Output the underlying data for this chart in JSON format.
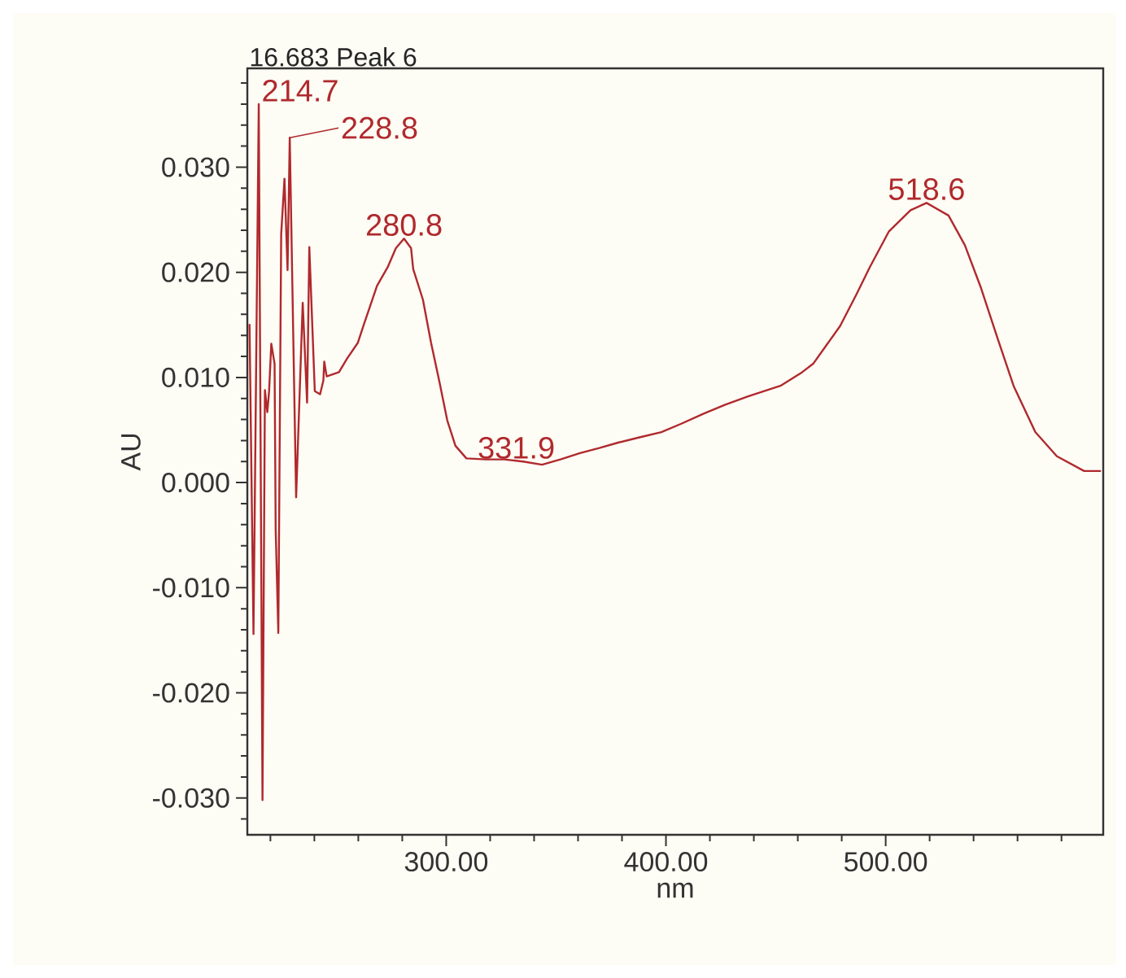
{
  "chart_data": {
    "type": "line",
    "title": "16.683 Peak 6",
    "xlabel": "nm",
    "ylabel": "AU",
    "series": [
      {
        "color": "#b0292d",
        "x": [
          210.5,
          212.3,
          214.7,
          216.4,
          217.5,
          218.6,
          219.4,
          220.4,
          221.9,
          222.4,
          223.6,
          224.9,
          226.4,
          227.8,
          228.8,
          231.7,
          234.7,
          236.7,
          237.7,
          240.2,
          242.6,
          244.1,
          244.5,
          245.6,
          251.2,
          254.9,
          259.8,
          262.3,
          268.5,
          273.4,
          277.1,
          280.8,
          284.0,
          285.0,
          289.4,
          293.1,
          296.8,
          300.5,
          304.2,
          309.2,
          318.0,
          326.4,
          335.0,
          343.6,
          352.0,
          360.9,
          370.0,
          378.2,
          388.0,
          397.9,
          407.0,
          417.6,
          427.0,
          437.4,
          452.1,
          462.0,
          467.0,
          479.3,
          486.7,
          492.8,
          501.5,
          511.3,
          518.6,
          528.6,
          536.0,
          543.4,
          550.8,
          558.2,
          568.1,
          577.9,
          590.3,
          597.6
        ],
        "values": [
          0.015,
          -0.0144,
          0.036,
          -0.0302,
          0.0088,
          0.0067,
          0.0087,
          0.0132,
          0.0113,
          -0.0045,
          -0.0143,
          0.0236,
          0.0289,
          0.0202,
          0.0328,
          -0.0014,
          0.0171,
          0.0076,
          0.0224,
          0.0087,
          0.0084,
          0.0097,
          0.0115,
          0.0101,
          0.0105,
          0.0118,
          0.0133,
          0.0149,
          0.0187,
          0.0205,
          0.0223,
          0.0232,
          0.0223,
          0.0203,
          0.0174,
          0.0133,
          0.0097,
          0.0059,
          0.0035,
          0.0023,
          0.0022,
          0.0022,
          0.002,
          0.0017,
          0.0022,
          0.0028,
          0.0033,
          0.0038,
          0.0043,
          0.0048,
          0.0056,
          0.0066,
          0.0074,
          0.0082,
          0.0092,
          0.0105,
          0.0113,
          0.0149,
          0.0179,
          0.0205,
          0.0239,
          0.0259,
          0.0266,
          0.0254,
          0.0226,
          0.0185,
          0.0138,
          0.0092,
          0.0048,
          0.0025,
          0.0011,
          0.0011
        ]
      }
    ],
    "annotations": [
      {
        "text": "214.7",
        "x": 214.7,
        "y": 0.036
      },
      {
        "text": "228.8",
        "x": 228.8,
        "y": 0.0328
      },
      {
        "text": "280.8",
        "x": 280.8,
        "y": 0.0232
      },
      {
        "text": "331.9",
        "x": 331.9,
        "y": 0.002
      },
      {
        "text": "518.6",
        "x": 518.6,
        "y": 0.0266
      }
    ],
    "xlim": [
      209.5,
      599
    ],
    "xticks": [
      {
        "value": 220,
        "label": null
      },
      {
        "value": 240,
        "label": null
      },
      {
        "value": 260,
        "label": null
      },
      {
        "value": 280,
        "label": null
      },
      {
        "value": 300,
        "label": "300.00"
      },
      {
        "value": 320,
        "label": null
      },
      {
        "value": 340,
        "label": null
      },
      {
        "value": 360,
        "label": null
      },
      {
        "value": 380,
        "label": null
      },
      {
        "value": 400,
        "label": "400.00"
      },
      {
        "value": 420,
        "label": null
      },
      {
        "value": 440,
        "label": null
      },
      {
        "value": 460,
        "label": null
      },
      {
        "value": 480,
        "label": null
      },
      {
        "value": 500,
        "label": "500.00"
      },
      {
        "value": 520,
        "label": null
      },
      {
        "value": 540,
        "label": null
      },
      {
        "value": 560,
        "label": null
      },
      {
        "value": 580,
        "label": null
      }
    ],
    "ylim": [
      -0.0335,
      0.0394
    ],
    "yticks": [
      {
        "value": -0.032,
        "label": null
      },
      {
        "value": -0.03,
        "label": "-0.030"
      },
      {
        "value": -0.028,
        "label": null
      },
      {
        "value": -0.026,
        "label": null
      },
      {
        "value": -0.024,
        "label": null
      },
      {
        "value": -0.022,
        "label": null
      },
      {
        "value": -0.02,
        "label": "-0.020"
      },
      {
        "value": -0.018,
        "label": null
      },
      {
        "value": -0.016,
        "label": null
      },
      {
        "value": -0.014,
        "label": null
      },
      {
        "value": -0.012,
        "label": null
      },
      {
        "value": -0.01,
        "label": "-0.010"
      },
      {
        "value": -0.008,
        "label": null
      },
      {
        "value": -0.006,
        "label": null
      },
      {
        "value": -0.004,
        "label": null
      },
      {
        "value": -0.002,
        "label": null
      },
      {
        "value": 0,
        "label": "0.000"
      },
      {
        "value": 0.002,
        "label": null
      },
      {
        "value": 0.004,
        "label": null
      },
      {
        "value": 0.006,
        "label": null
      },
      {
        "value": 0.008,
        "label": null
      },
      {
        "value": 0.01,
        "label": "0.010"
      },
      {
        "value": 0.012,
        "label": null
      },
      {
        "value": 0.014,
        "label": null
      },
      {
        "value": 0.016,
        "label": null
      },
      {
        "value": 0.018,
        "label": null
      },
      {
        "value": 0.02,
        "label": "0.020"
      },
      {
        "value": 0.022,
        "label": null
      },
      {
        "value": 0.024,
        "label": null
      },
      {
        "value": 0.026,
        "label": null
      },
      {
        "value": 0.028,
        "label": null
      },
      {
        "value": 0.03,
        "label": "0.030"
      },
      {
        "value": 0.032,
        "label": null
      },
      {
        "value": 0.034,
        "label": null
      },
      {
        "value": 0.036,
        "label": null
      },
      {
        "value": 0.038,
        "label": null
      }
    ]
  }
}
